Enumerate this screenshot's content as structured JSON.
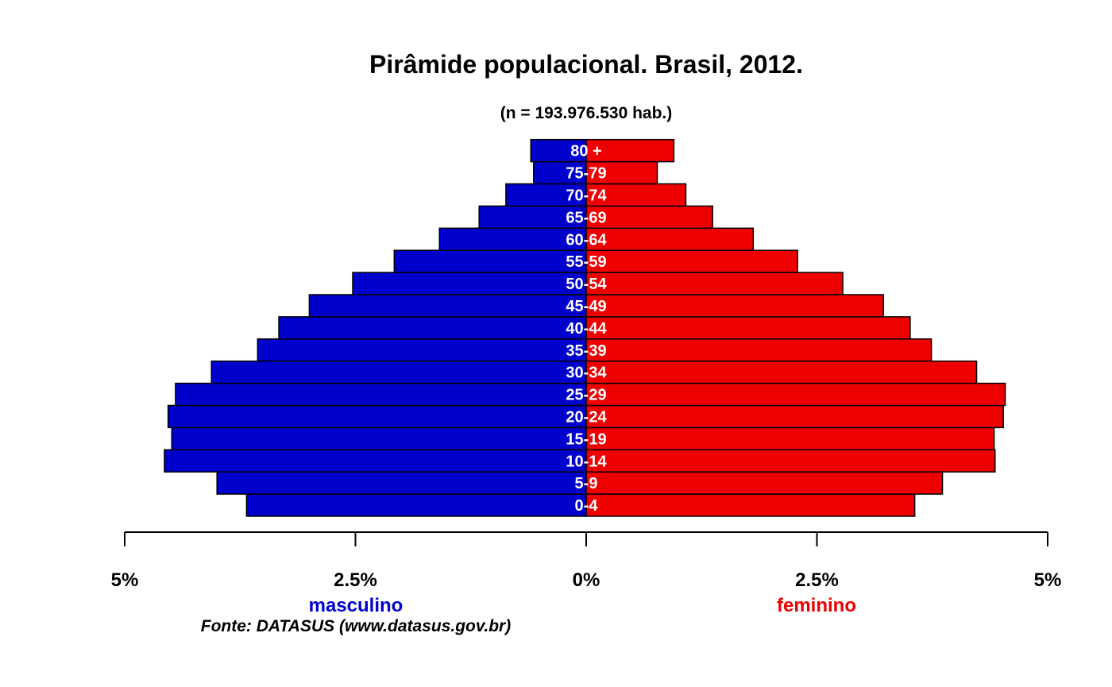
{
  "chart_data": {
    "type": "bar",
    "orientation": "horizontal-diverging",
    "title": "Pirâmide populacional.  Brasil,  2012.",
    "subtitle": "(n = 193.976.530 hab.)",
    "categories": [
      "0-4",
      "5-9",
      "10-14",
      "15-19",
      "20-24",
      "25-29",
      "30-34",
      "35-39",
      "40-44",
      "45-49",
      "50-54",
      "55-59",
      "60-64",
      "65-69",
      "70-74",
      "75-79",
      "80 +"
    ],
    "series": [
      {
        "name": "masculino",
        "color": "#0000CD",
        "values": [
          3.68,
          4.0,
          4.57,
          4.49,
          4.53,
          4.45,
          4.06,
          3.56,
          3.33,
          3.0,
          2.53,
          2.08,
          1.59,
          1.16,
          0.87,
          0.57,
          0.6
        ]
      },
      {
        "name": "feminino",
        "color": "#EE0000",
        "values": [
          3.56,
          3.86,
          4.43,
          4.42,
          4.52,
          4.54,
          4.23,
          3.74,
          3.51,
          3.22,
          2.78,
          2.29,
          1.81,
          1.37,
          1.08,
          0.77,
          0.95
        ]
      }
    ],
    "xlim": [
      -5,
      5
    ],
    "xticks": [
      {
        "value": -5,
        "label": "5%"
      },
      {
        "value": -2.5,
        "label": "2.5%"
      },
      {
        "value": 0,
        "label": "0%"
      },
      {
        "value": 2.5,
        "label": "2.5%"
      },
      {
        "value": 5,
        "label": "5%"
      }
    ],
    "xlabel_left": "masculino",
    "xlabel_right": "feminino",
    "source": "Fonte: DATASUS (www.datasus.gov.br)",
    "grid": false,
    "legend": "none"
  }
}
